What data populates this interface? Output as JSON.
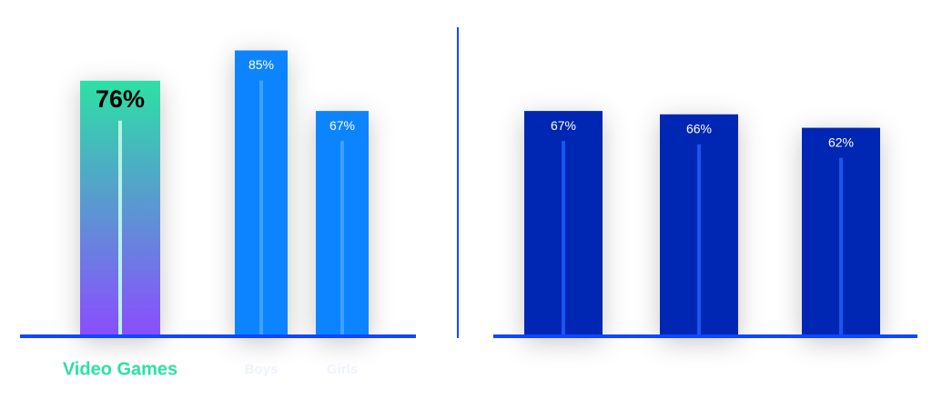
{
  "chart_data": [
    {
      "type": "bar",
      "categories": [
        "Video Games",
        "Boys",
        "Girls"
      ],
      "values": [
        76,
        85,
        67
      ],
      "value_labels": [
        "76%",
        "85%",
        "67%"
      ],
      "colors": [
        "gradient",
        "#0a84ff",
        "#0a84ff"
      ]
    },
    {
      "type": "bar",
      "categories": [
        null,
        null,
        null
      ],
      "values": [
        67,
        66,
        62
      ],
      "value_labels": [
        "67%",
        "66%",
        "62%"
      ],
      "colors": [
        "#0527b4",
        "#0527b4",
        "#0527b4"
      ]
    }
  ]
}
